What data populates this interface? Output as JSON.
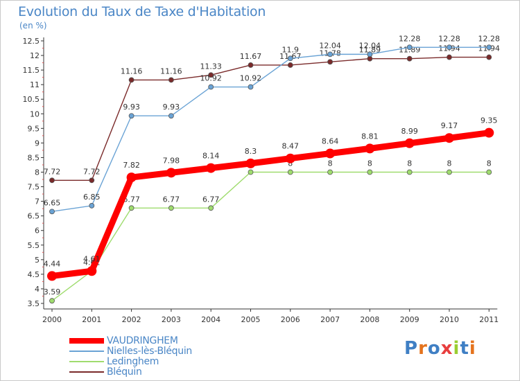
{
  "header": {
    "title": "Evolution du Taux de Taxe d'Habitation",
    "subtitle": "(en %)"
  },
  "logo": {
    "text": "Proxiti",
    "colors": [
      "#3f7fc4",
      "#e5731d",
      "#3f7fc4",
      "#e83e3e",
      "#9acd32",
      "#3f7fc4",
      "#e5731d"
    ]
  },
  "chart_data": {
    "type": "line",
    "title": "Evolution du Taux de Taxe d'Habitation",
    "subtitle": "(en %)",
    "xlabel": "",
    "ylabel": "",
    "x": [
      "2000",
      "2001",
      "2002",
      "2003",
      "2004",
      "2005",
      "2006",
      "2007",
      "2008",
      "2009",
      "2010",
      "2011"
    ],
    "ylim": [
      3.5,
      12.5
    ],
    "yticks": [
      "3.5",
      "4",
      "4.5",
      "5",
      "5.5",
      "6",
      "6.5",
      "7",
      "7.5",
      "8",
      "8.5",
      "9",
      "9.5",
      "10",
      "10.5",
      "11",
      "11.5",
      "12",
      "12.5"
    ],
    "grid": false,
    "legend_position": "bottom-left",
    "series": [
      {
        "name": "Bléquin",
        "color": "#7a2a2a",
        "values": [
          7.72,
          7.72,
          11.16,
          11.16,
          11.33,
          11.67,
          11.67,
          11.78,
          11.89,
          11.89,
          11.94,
          11.94
        ],
        "labels": [
          "7.72",
          "7.72",
          "11.16",
          "11.16",
          "11.33",
          "11.67",
          "11.67",
          "11.78",
          "11.89",
          "11.89",
          "11.94",
          "11.94"
        ]
      },
      {
        "name": "Nielles-lès-Bléquin",
        "color": "#6aa3d5",
        "values": [
          6.65,
          6.85,
          9.93,
          9.93,
          10.92,
          10.92,
          11.9,
          12.04,
          12.04,
          12.28,
          12.28,
          12.28
        ],
        "labels": [
          "6.65",
          "6.85",
          "9.93",
          "9.93",
          "10.92",
          "10.92",
          "11.9",
          "12.04",
          "12.04",
          "12.28",
          "12.28",
          "12.28"
        ]
      },
      {
        "name": "Ledinghem",
        "color": "#9fdc6e",
        "values": [
          3.59,
          4.61,
          6.77,
          6.77,
          6.77,
          8,
          8,
          8,
          8,
          8,
          8,
          8
        ],
        "labels": [
          "3.59",
          "4.61",
          "6.77",
          "6.77",
          "6.77",
          "8",
          "8",
          "8",
          "8",
          "8",
          "8",
          "8"
        ]
      },
      {
        "name": "VAUDRINGHEM",
        "color": "#ff0000",
        "values": [
          4.44,
          4.61,
          7.82,
          7.98,
          8.14,
          8.3,
          8.47,
          8.64,
          8.81,
          8.99,
          9.17,
          9.35
        ],
        "labels": [
          "4.44",
          "4.61",
          "7.82",
          "7.98",
          "8.14",
          "8.3",
          "8.47",
          "8.64",
          "8.81",
          "8.99",
          "9.17",
          "9.35"
        ]
      }
    ],
    "legend_order": [
      "VAUDRINGHEM",
      "Nielles-lès-Bléquin",
      "Ledinghem",
      "Bléquin"
    ]
  }
}
